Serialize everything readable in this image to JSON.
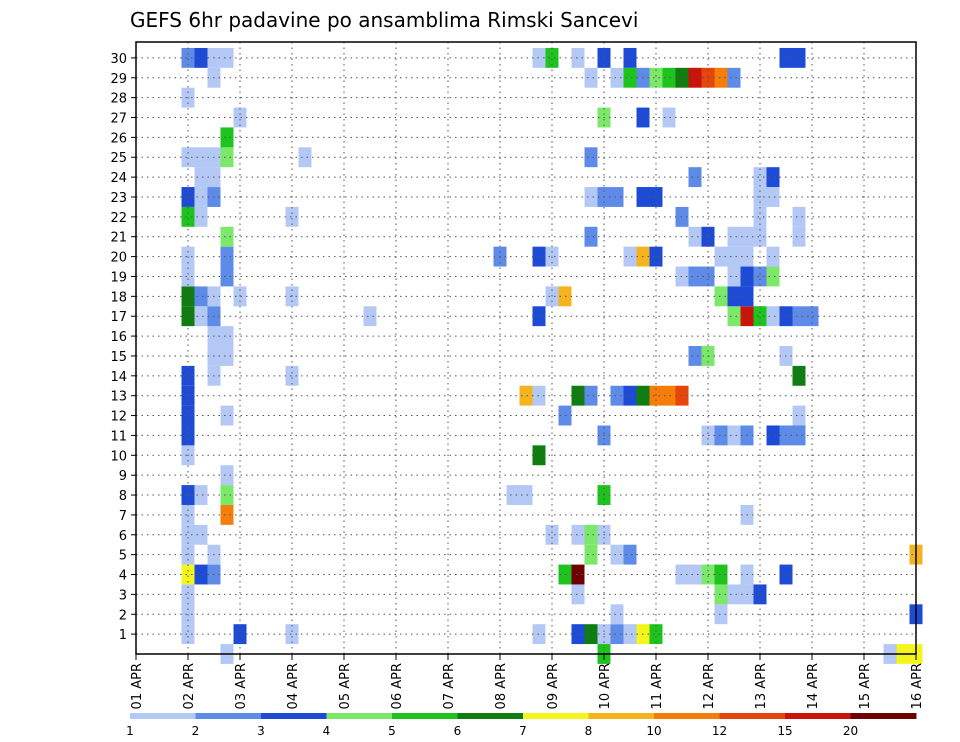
{
  "chart_data": {
    "type": "heatmap",
    "title": "GEFS 6hr padavine po ansamblima Rimski Sancevi",
    "xlabel": "",
    "ylabel": "",
    "x_tick_labels": [
      "01 APR",
      "02 APR",
      "03 APR",
      "04 APR",
      "05 APR",
      "06 APR",
      "07 APR",
      "08 APR",
      "09 APR",
      "10 APR",
      "11 APR",
      "12 APR",
      "13 APR",
      "14 APR",
      "15 APR",
      "16 APR"
    ],
    "y_tick_labels": [
      "1",
      "2",
      "3",
      "4",
      "5",
      "6",
      "7",
      "8",
      "9",
      "10",
      "11",
      "12",
      "13",
      "14",
      "15",
      "16",
      "17",
      "18",
      "19",
      "20",
      "21",
      "22",
      "23",
      "24",
      "25",
      "26",
      "27",
      "28",
      "29",
      "30"
    ],
    "x_steps_per_day": 4,
    "x_range_steps": [
      0,
      60
    ],
    "y_range": [
      0,
      30
    ],
    "grid": true,
    "legend_position": "bottom",
    "color_scale": {
      "labels": [
        "1",
        "2",
        "3",
        "4",
        "5",
        "6",
        "7",
        "8",
        "10",
        "12",
        "15",
        "20"
      ],
      "colors": [
        "#b4c8f5",
        "#5e8ae8",
        "#1e4bd6",
        "#7be86a",
        "#1ec31e",
        "#0f7d0f",
        "#f5f51e",
        "#f5b41e",
        "#f57d0a",
        "#e6460a",
        "#c8140a",
        "#6e0000"
      ]
    },
    "cells": [
      {
        "t": 4,
        "m": 1,
        "c": 1
      },
      {
        "t": 8,
        "m": 1,
        "c": 3
      },
      {
        "t": 12,
        "m": 1,
        "c": 1
      },
      {
        "t": 31,
        "m": 1,
        "c": 1
      },
      {
        "t": 34,
        "m": 1,
        "c": 3
      },
      {
        "t": 35,
        "m": 1,
        "c": 6
      },
      {
        "t": 36,
        "m": 1,
        "c": 1
      },
      {
        "t": 37,
        "m": 1,
        "c": 2
      },
      {
        "t": 38,
        "m": 1,
        "c": 1
      },
      {
        "t": 39,
        "m": 1,
        "c": 7
      },
      {
        "t": 40,
        "m": 1,
        "c": 5
      },
      {
        "t": 4,
        "m": 2,
        "c": 1
      },
      {
        "t": 37,
        "m": 2,
        "c": 1
      },
      {
        "t": 45,
        "m": 2,
        "c": 1
      },
      {
        "t": 60,
        "m": 2,
        "c": 3
      },
      {
        "t": 4,
        "m": 3,
        "c": 1
      },
      {
        "t": 34,
        "m": 3,
        "c": 1
      },
      {
        "t": 45,
        "m": 3,
        "c": 4
      },
      {
        "t": 46,
        "m": 3,
        "c": 1
      },
      {
        "t": 47,
        "m": 3,
        "c": 1
      },
      {
        "t": 48,
        "m": 3,
        "c": 3
      },
      {
        "t": 4,
        "m": 4,
        "c": 7
      },
      {
        "t": 5,
        "m": 4,
        "c": 3
      },
      {
        "t": 6,
        "m": 4,
        "c": 2
      },
      {
        "t": 33,
        "m": 4,
        "c": 5
      },
      {
        "t": 34,
        "m": 4,
        "c": 12
      },
      {
        "t": 42,
        "m": 4,
        "c": 1
      },
      {
        "t": 43,
        "m": 4,
        "c": 1
      },
      {
        "t": 44,
        "m": 4,
        "c": 4
      },
      {
        "t": 45,
        "m": 4,
        "c": 5
      },
      {
        "t": 47,
        "m": 4,
        "c": 1
      },
      {
        "t": 50,
        "m": 4,
        "c": 3
      },
      {
        "t": 4,
        "m": 5,
        "c": 1
      },
      {
        "t": 6,
        "m": 5,
        "c": 1
      },
      {
        "t": 35,
        "m": 5,
        "c": 4
      },
      {
        "t": 37,
        "m": 5,
        "c": 1
      },
      {
        "t": 38,
        "m": 5,
        "c": 2
      },
      {
        "t": 60,
        "m": 5,
        "c": 8
      },
      {
        "t": 4,
        "m": 6,
        "c": 1
      },
      {
        "t": 5,
        "m": 6,
        "c": 1
      },
      {
        "t": 32,
        "m": 6,
        "c": 1
      },
      {
        "t": 34,
        "m": 6,
        "c": 1
      },
      {
        "t": 35,
        "m": 6,
        "c": 4
      },
      {
        "t": 36,
        "m": 6,
        "c": 1
      },
      {
        "t": 4,
        "m": 7,
        "c": 1
      },
      {
        "t": 7,
        "m": 7,
        "c": 9
      },
      {
        "t": 47,
        "m": 7,
        "c": 1
      },
      {
        "t": 4,
        "m": 8,
        "c": 3
      },
      {
        "t": 5,
        "m": 8,
        "c": 1
      },
      {
        "t": 7,
        "m": 8,
        "c": 4
      },
      {
        "t": 29,
        "m": 8,
        "c": 1
      },
      {
        "t": 30,
        "m": 8,
        "c": 1
      },
      {
        "t": 36,
        "m": 8,
        "c": 5
      },
      {
        "t": 7,
        "m": 9,
        "c": 1
      },
      {
        "t": 4,
        "m": 10,
        "c": 1
      },
      {
        "t": 31,
        "m": 10,
        "c": 6
      },
      {
        "t": 4,
        "m": 11,
        "c": 3
      },
      {
        "t": 36,
        "m": 11,
        "c": 2
      },
      {
        "t": 44,
        "m": 11,
        "c": 1
      },
      {
        "t": 45,
        "m": 11,
        "c": 2
      },
      {
        "t": 46,
        "m": 11,
        "c": 1
      },
      {
        "t": 47,
        "m": 11,
        "c": 2
      },
      {
        "t": 49,
        "m": 11,
        "c": 3
      },
      {
        "t": 50,
        "m": 11,
        "c": 2
      },
      {
        "t": 51,
        "m": 11,
        "c": 2
      },
      {
        "t": 4,
        "m": 12,
        "c": 3
      },
      {
        "t": 7,
        "m": 12,
        "c": 1
      },
      {
        "t": 33,
        "m": 12,
        "c": 2
      },
      {
        "t": 51,
        "m": 12,
        "c": 1
      },
      {
        "t": 4,
        "m": 13,
        "c": 3
      },
      {
        "t": 30,
        "m": 13,
        "c": 8
      },
      {
        "t": 31,
        "m": 13,
        "c": 1
      },
      {
        "t": 34,
        "m": 13,
        "c": 6
      },
      {
        "t": 35,
        "m": 13,
        "c": 2
      },
      {
        "t": 37,
        "m": 13,
        "c": 2
      },
      {
        "t": 38,
        "m": 13,
        "c": 3
      },
      {
        "t": 39,
        "m": 13,
        "c": 6
      },
      {
        "t": 40,
        "m": 13,
        "c": 9
      },
      {
        "t": 41,
        "m": 13,
        "c": 9
      },
      {
        "t": 42,
        "m": 13,
        "c": 10
      },
      {
        "t": 4,
        "m": 14,
        "c": 3
      },
      {
        "t": 6,
        "m": 14,
        "c": 1
      },
      {
        "t": 12,
        "m": 14,
        "c": 1
      },
      {
        "t": 51,
        "m": 14,
        "c": 6
      },
      {
        "t": 6,
        "m": 15,
        "c": 1
      },
      {
        "t": 7,
        "m": 15,
        "c": 1
      },
      {
        "t": 43,
        "m": 15,
        "c": 2
      },
      {
        "t": 44,
        "m": 15,
        "c": 4
      },
      {
        "t": 50,
        "m": 15,
        "c": 1
      },
      {
        "t": 6,
        "m": 16,
        "c": 1
      },
      {
        "t": 7,
        "m": 16,
        "c": 1
      },
      {
        "t": 4,
        "m": 17,
        "c": 6
      },
      {
        "t": 5,
        "m": 17,
        "c": 1
      },
      {
        "t": 6,
        "m": 17,
        "c": 2
      },
      {
        "t": 18,
        "m": 17,
        "c": 1
      },
      {
        "t": 31,
        "m": 17,
        "c": 3
      },
      {
        "t": 46,
        "m": 17,
        "c": 4
      },
      {
        "t": 47,
        "m": 17,
        "c": 11
      },
      {
        "t": 48,
        "m": 17,
        "c": 5
      },
      {
        "t": 49,
        "m": 17,
        "c": 1
      },
      {
        "t": 50,
        "m": 17,
        "c": 3
      },
      {
        "t": 51,
        "m": 17,
        "c": 2
      },
      {
        "t": 52,
        "m": 17,
        "c": 2
      },
      {
        "t": 4,
        "m": 18,
        "c": 6
      },
      {
        "t": 5,
        "m": 18,
        "c": 2
      },
      {
        "t": 6,
        "m": 18,
        "c": 1
      },
      {
        "t": 8,
        "m": 18,
        "c": 1
      },
      {
        "t": 12,
        "m": 18,
        "c": 1
      },
      {
        "t": 32,
        "m": 18,
        "c": 1
      },
      {
        "t": 33,
        "m": 18,
        "c": 8
      },
      {
        "t": 45,
        "m": 18,
        "c": 4
      },
      {
        "t": 46,
        "m": 18,
        "c": 3
      },
      {
        "t": 47,
        "m": 18,
        "c": 3
      },
      {
        "t": 4,
        "m": 19,
        "c": 1
      },
      {
        "t": 7,
        "m": 19,
        "c": 2
      },
      {
        "t": 42,
        "m": 19,
        "c": 1
      },
      {
        "t": 43,
        "m": 19,
        "c": 2
      },
      {
        "t": 44,
        "m": 19,
        "c": 2
      },
      {
        "t": 46,
        "m": 19,
        "c": 1
      },
      {
        "t": 47,
        "m": 19,
        "c": 3
      },
      {
        "t": 48,
        "m": 19,
        "c": 2
      },
      {
        "t": 49,
        "m": 19,
        "c": 4
      },
      {
        "t": 4,
        "m": 20,
        "c": 1
      },
      {
        "t": 7,
        "m": 20,
        "c": 2
      },
      {
        "t": 28,
        "m": 20,
        "c": 2
      },
      {
        "t": 31,
        "m": 20,
        "c": 3
      },
      {
        "t": 32,
        "m": 20,
        "c": 1
      },
      {
        "t": 38,
        "m": 20,
        "c": 1
      },
      {
        "t": 39,
        "m": 20,
        "c": 8
      },
      {
        "t": 40,
        "m": 20,
        "c": 3
      },
      {
        "t": 45,
        "m": 20,
        "c": 1
      },
      {
        "t": 46,
        "m": 20,
        "c": 1
      },
      {
        "t": 47,
        "m": 20,
        "c": 1
      },
      {
        "t": 49,
        "m": 20,
        "c": 1
      },
      {
        "t": 7,
        "m": 21,
        "c": 4
      },
      {
        "t": 35,
        "m": 21,
        "c": 2
      },
      {
        "t": 43,
        "m": 21,
        "c": 1
      },
      {
        "t": 44,
        "m": 21,
        "c": 3
      },
      {
        "t": 46,
        "m": 21,
        "c": 1
      },
      {
        "t": 47,
        "m": 21,
        "c": 1
      },
      {
        "t": 48,
        "m": 21,
        "c": 1
      },
      {
        "t": 51,
        "m": 21,
        "c": 1
      },
      {
        "t": 4,
        "m": 22,
        "c": 5
      },
      {
        "t": 5,
        "m": 22,
        "c": 1
      },
      {
        "t": 12,
        "m": 22,
        "c": 1
      },
      {
        "t": 42,
        "m": 22,
        "c": 2
      },
      {
        "t": 48,
        "m": 22,
        "c": 1
      },
      {
        "t": 51,
        "m": 22,
        "c": 1
      },
      {
        "t": 4,
        "m": 23,
        "c": 3
      },
      {
        "t": 5,
        "m": 23,
        "c": 1
      },
      {
        "t": 6,
        "m": 23,
        "c": 2
      },
      {
        "t": 35,
        "m": 23,
        "c": 1
      },
      {
        "t": 36,
        "m": 23,
        "c": 2
      },
      {
        "t": 37,
        "m": 23,
        "c": 2
      },
      {
        "t": 39,
        "m": 23,
        "c": 3
      },
      {
        "t": 40,
        "m": 23,
        "c": 3
      },
      {
        "t": 48,
        "m": 23,
        "c": 1
      },
      {
        "t": 49,
        "m": 23,
        "c": 1
      },
      {
        "t": 5,
        "m": 24,
        "c": 1
      },
      {
        "t": 6,
        "m": 24,
        "c": 1
      },
      {
        "t": 43,
        "m": 24,
        "c": 2
      },
      {
        "t": 48,
        "m": 24,
        "c": 1
      },
      {
        "t": 49,
        "m": 24,
        "c": 3
      },
      {
        "t": 4,
        "m": 25,
        "c": 1
      },
      {
        "t": 5,
        "m": 25,
        "c": 1
      },
      {
        "t": 6,
        "m": 25,
        "c": 1
      },
      {
        "t": 7,
        "m": 25,
        "c": 4
      },
      {
        "t": 13,
        "m": 25,
        "c": 1
      },
      {
        "t": 35,
        "m": 25,
        "c": 2
      },
      {
        "t": 7,
        "m": 26,
        "c": 5
      },
      {
        "t": 8,
        "m": 27,
        "c": 1
      },
      {
        "t": 36,
        "m": 27,
        "c": 4
      },
      {
        "t": 39,
        "m": 27,
        "c": 3
      },
      {
        "t": 41,
        "m": 27,
        "c": 1
      },
      {
        "t": 4,
        "m": 28,
        "c": 1
      },
      {
        "t": 6,
        "m": 29,
        "c": 1
      },
      {
        "t": 35,
        "m": 29,
        "c": 1
      },
      {
        "t": 37,
        "m": 29,
        "c": 1
      },
      {
        "t": 38,
        "m": 29,
        "c": 5
      },
      {
        "t": 39,
        "m": 29,
        "c": 2
      },
      {
        "t": 40,
        "m": 29,
        "c": 4
      },
      {
        "t": 41,
        "m": 29,
        "c": 5
      },
      {
        "t": 42,
        "m": 29,
        "c": 6
      },
      {
        "t": 43,
        "m": 29,
        "c": 11
      },
      {
        "t": 44,
        "m": 29,
        "c": 10
      },
      {
        "t": 45,
        "m": 29,
        "c": 9
      },
      {
        "t": 46,
        "m": 29,
        "c": 2
      },
      {
        "t": 4,
        "m": 30,
        "c": 2
      },
      {
        "t": 5,
        "m": 30,
        "c": 3
      },
      {
        "t": 6,
        "m": 30,
        "c": 1
      },
      {
        "t": 7,
        "m": 30,
        "c": 1
      },
      {
        "t": 31,
        "m": 30,
        "c": 1
      },
      {
        "t": 32,
        "m": 30,
        "c": 5
      },
      {
        "t": 34,
        "m": 30,
        "c": 1
      },
      {
        "t": 36,
        "m": 30,
        "c": 3
      },
      {
        "t": 38,
        "m": 30,
        "c": 3
      },
      {
        "t": 50,
        "m": 30,
        "c": 3
      },
      {
        "t": 51,
        "m": 30,
        "c": 3
      },
      {
        "t": 7,
        "m": 0,
        "c": 1
      },
      {
        "t": 36,
        "m": 0,
        "c": 5
      },
      {
        "t": 58,
        "m": 0,
        "c": 1
      },
      {
        "t": 59,
        "m": 0,
        "c": 7
      },
      {
        "t": 60,
        "m": 0,
        "c": 7
      }
    ]
  }
}
